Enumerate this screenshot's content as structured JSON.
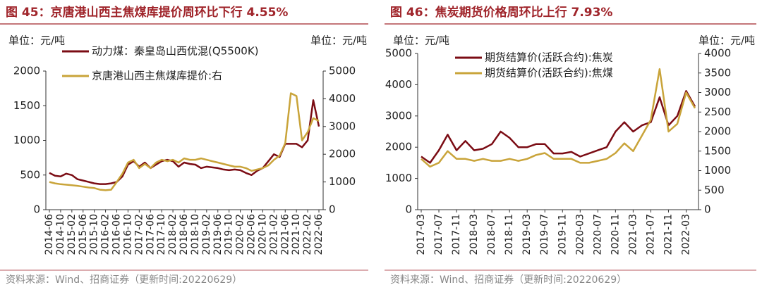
{
  "chart_data": [
    {
      "type": "line",
      "title": "图 45：京唐港山西主焦煤库提价周环比下行 4.55%",
      "unit_left": "单位：元/吨",
      "unit_right": "单位：元/吨",
      "source": "资料来源：Wind、招商证券（更新时间:20220629）",
      "categories": [
        "2014-06",
        null,
        "2014-10",
        null,
        "2015-02",
        null,
        "2015-06",
        null,
        "2015-10",
        null,
        "2016-02",
        null,
        "2016-06",
        null,
        "2016-10",
        null,
        "2017-02",
        null,
        "2017-06",
        null,
        "2017-10",
        null,
        "2018-02",
        null,
        "2018-06",
        null,
        "2018-10",
        null,
        "2019-02",
        null,
        "2019-06",
        null,
        "2019-10",
        null,
        "2020-02",
        null,
        "2020-06",
        null,
        "2020-10",
        null,
        "2021-02",
        null,
        "2021-06",
        null,
        "2021-10",
        null,
        "2022-02",
        null,
        "2022-06"
      ],
      "series": [
        {
          "name": "动力煤：秦皇岛山西优混(Q5500K)",
          "color": "#7B0C14",
          "axis": "y",
          "values": [
            530,
            490,
            480,
            520,
            500,
            440,
            420,
            400,
            380,
            370,
            370,
            380,
            400,
            480,
            650,
            700,
            620,
            680,
            600,
            650,
            700,
            720,
            700,
            620,
            680,
            660,
            650,
            600,
            620,
            610,
            600,
            580,
            570,
            580,
            570,
            530,
            500,
            560,
            600,
            700,
            800,
            760,
            950,
            950,
            950,
            900,
            1000,
            1580,
            1200
          ]
        },
        {
          "name": "京唐港山西主焦煤库提价:右",
          "color": "#C9A43A",
          "axis": "y2",
          "values": [
            1000,
            950,
            920,
            900,
            880,
            860,
            830,
            800,
            780,
            720,
            700,
            720,
            1000,
            1300,
            1700,
            1800,
            1500,
            1650,
            1500,
            1700,
            1800,
            1750,
            1800,
            1700,
            1850,
            1800,
            1800,
            1850,
            1800,
            1750,
            1700,
            1650,
            1600,
            1550,
            1550,
            1500,
            1400,
            1450,
            1500,
            1600,
            1800,
            1950,
            2400,
            4200,
            4100,
            2500,
            2800,
            3300,
            3200
          ]
        }
      ],
      "ylim": [
        0,
        2000
      ],
      "yticks": [
        0,
        500,
        1000,
        1500,
        2000
      ],
      "y2lim": [
        0,
        5000
      ],
      "y2ticks": [
        0,
        1000,
        2000,
        3000,
        4000,
        5000
      ],
      "legend": "upper left"
    },
    {
      "type": "line",
      "title": "图 46：焦炭期货价格周环比上行 7.93%",
      "unit_left": "单位：元/吨",
      "unit_right": "单位：元/吨",
      "source": "资料来源：Wind、招商证券（更新时间:20220629）",
      "categories": [
        "2017-03",
        null,
        "2017-07",
        null,
        "2017-11",
        null,
        "2018-03",
        null,
        "2018-07",
        null,
        "2018-11",
        null,
        "2019-03",
        null,
        "2019-07",
        null,
        "2019-11",
        null,
        "2020-03",
        null,
        "2020-07",
        null,
        "2020-11",
        null,
        "2021-03",
        null,
        "2021-07",
        null,
        "2021-11",
        null,
        "2022-03",
        null
      ],
      "series": [
        {
          "name": "期货结算价(活跃合约):焦炭",
          "color": "#7B0C14",
          "axis": "y",
          "values": [
            1700,
            1500,
            1900,
            2400,
            1900,
            2200,
            1900,
            1950,
            2100,
            2500,
            2300,
            2000,
            2000,
            2100,
            2100,
            1800,
            1800,
            1850,
            1700,
            1800,
            1900,
            2000,
            2500,
            2800,
            2500,
            2700,
            2800,
            3600,
            2700,
            3000,
            3800,
            3300
          ]
        },
        {
          "name": "期货结算价(活跃合约):焦煤",
          "color": "#C9A43A",
          "axis": "y2",
          "values": [
            1300,
            1100,
            1200,
            1500,
            1300,
            1300,
            1250,
            1300,
            1250,
            1250,
            1300,
            1250,
            1300,
            1400,
            1450,
            1300,
            1300,
            1300,
            1200,
            1200,
            1250,
            1300,
            1450,
            1700,
            1500,
            1900,
            2300,
            3600,
            2000,
            2200,
            3000,
            2600
          ]
        }
      ],
      "ylim": [
        0,
        5000
      ],
      "yticks": [
        0,
        1000,
        2000,
        3000,
        4000,
        5000
      ],
      "y2lim": [
        0,
        4000
      ],
      "y2ticks": [
        0,
        500,
        1000,
        1500,
        2000,
        2500,
        3000,
        3500,
        4000
      ],
      "legend": "upper left"
    }
  ]
}
